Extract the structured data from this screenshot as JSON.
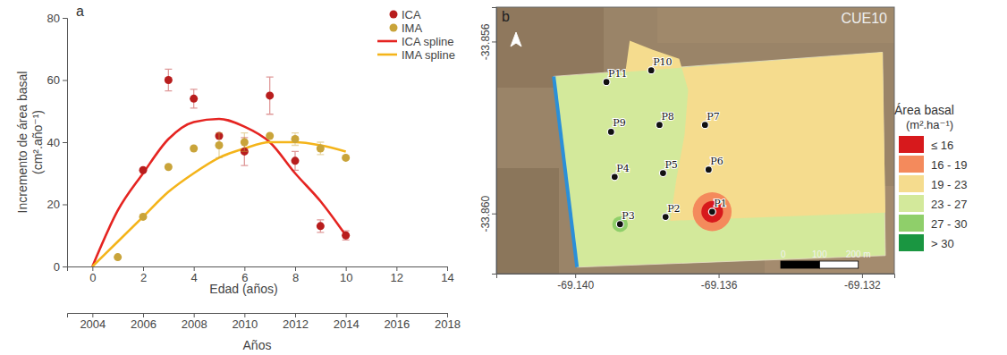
{
  "chart_data": [
    {
      "type": "scatter",
      "panel_label": "a",
      "x_label": "Edad (años)",
      "x2_label": "Años",
      "y_label": [
        "Incremento de área basal",
        "(cm².año⁻¹)"
      ],
      "xlim": [
        -1,
        14
      ],
      "xticks": [
        0,
        2,
        4,
        6,
        8,
        10,
        12,
        14
      ],
      "x2lim": [
        2003,
        2018
      ],
      "x2ticks": [
        2004,
        2006,
        2008,
        2010,
        2012,
        2014,
        2016,
        2018
      ],
      "ylim": [
        0,
        80
      ],
      "yticks": [
        0,
        20,
        40,
        60,
        80
      ],
      "grid": false,
      "legend": "top-right",
      "series": [
        {
          "name": "ICA",
          "type": "scatter",
          "marker": "circle",
          "color": "#b81d1d",
          "x": [
            2,
            3,
            4,
            5,
            6,
            7,
            8,
            9,
            10
          ],
          "values": [
            31,
            60,
            54,
            42,
            37,
            55,
            34,
            13,
            10
          ],
          "errors": [
            0,
            3.5,
            3,
            0,
            4.5,
            6,
            3,
            2,
            1.5
          ]
        },
        {
          "name": "IMA",
          "type": "scatter",
          "marker": "circle",
          "color": "#c9a43a",
          "x": [
            1,
            2,
            3,
            4,
            5,
            6,
            7,
            8,
            9,
            10
          ],
          "values": [
            3,
            16,
            32,
            38,
            39,
            40,
            42,
            41,
            38,
            35
          ],
          "errors": [
            0,
            0,
            0,
            0,
            4,
            3,
            0,
            2,
            2,
            0
          ]
        },
        {
          "name": "ICA spline",
          "type": "line",
          "line_style": "solid",
          "color": "#e52421",
          "x": [
            0,
            1,
            2,
            3,
            4,
            5,
            6,
            7,
            8,
            9,
            10
          ],
          "values": [
            0,
            18,
            30,
            41,
            46.5,
            47.5,
            45,
            40,
            30,
            21,
            10
          ]
        },
        {
          "name": "IMA spline",
          "type": "line",
          "line_style": "solid",
          "color": "#f4b41a",
          "x": [
            0,
            1,
            2,
            3,
            4,
            5,
            6,
            7,
            8,
            9,
            10
          ],
          "values": [
            0,
            8,
            16,
            24,
            30,
            35,
            38,
            40,
            40,
            39,
            37
          ]
        }
      ]
    },
    {
      "type": "map",
      "panel_label": "b",
      "title": "CUE10",
      "xlim": [
        -69.1422,
        -69.1311
      ],
      "ylim": [
        -33.8614,
        -33.8552
      ],
      "xticks": [
        {
          "value": -69.14,
          "label": "-69.140"
        },
        -69.136,
        -69.132
      ],
      "yticks": [
        -33.856,
        {
          "value": -33.86,
          "label": "-33.860"
        }
      ],
      "legend_title": "Área basal",
      "legend_subtitle": "(m².ha⁻¹)",
      "classes": [
        {
          "label": "≤ 16",
          "color": "#d7191c"
        },
        {
          "label": "16 - 19",
          "color": "#f48a5c"
        },
        {
          "label": "19 - 23",
          "color": "#f5dc8e"
        },
        {
          "label": "23 - 27",
          "color": "#d3e99b"
        },
        {
          "label": "27 - 30",
          "color": "#8fcf6a"
        },
        {
          "label": "> 30",
          "color": "#1a9641"
        }
      ],
      "field": {
        "class": "23 - 27",
        "polygon": [
          [
            -69.1406,
            -33.85681
          ],
          [
            -69.13143,
            -33.85625
          ],
          [
            -69.13135,
            -33.86098
          ],
          [
            -69.13995,
            -33.86125
          ]
        ]
      },
      "zones": [
        {
          "class": "19 - 23",
          "polygon": [
            [
              -69.1386,
              -33.85671
            ],
            [
              -69.13143,
              -33.85625
            ],
            [
              -69.13135,
              -33.85998
            ],
            [
              -69.13735,
              -33.86017
            ],
            [
              -69.13718,
              -33.85921
            ],
            [
              -69.13695,
              -33.85817
            ],
            [
              -69.13685,
              -33.85713
            ],
            [
              -69.1371,
              -33.8564
            ],
            [
              -69.13785,
              -33.85619
            ],
            [
              -69.13848,
              -33.85598
            ]
          ]
        }
      ],
      "hotspots": [
        {
          "lon": -69.13618,
          "lat": -33.85996,
          "radius_m": 50,
          "class": "16 - 19"
        },
        {
          "lon": -69.13618,
          "lat": -33.85996,
          "radius_m": 28,
          "class": "≤ 16"
        },
        {
          "lon": -69.13875,
          "lat": -33.86025,
          "radius_m": 20,
          "class": "27 - 30"
        }
      ],
      "points": [
        {
          "name": "P1",
          "x": -69.13618,
          "y": -33.85996
        },
        {
          "name": "P2",
          "x": -69.13748,
          "y": -33.86008
        },
        {
          "name": "P3",
          "x": -69.13875,
          "y": -33.86025
        },
        {
          "name": "P4",
          "x": -69.1389,
          "y": -33.85915
        },
        {
          "name": "P5",
          "x": -69.13755,
          "y": -33.85906
        },
        {
          "name": "P6",
          "x": -69.13628,
          "y": -33.85898
        },
        {
          "name": "P7",
          "x": -69.13638,
          "y": -33.85794
        },
        {
          "name": "P8",
          "x": -69.13765,
          "y": -33.85794
        },
        {
          "name": "P9",
          "x": -69.139,
          "y": -33.8581
        },
        {
          "name": "P10",
          "x": -69.13788,
          "y": -33.85667
        },
        {
          "name": "P11",
          "x": -69.13913,
          "y": -33.85694
        }
      ],
      "scale_bar": [
        {
          "value": 0,
          "label": "0"
        },
        {
          "value": 100,
          "label": "100"
        },
        {
          "value": 200,
          "label": "200 m"
        }
      ]
    }
  ]
}
